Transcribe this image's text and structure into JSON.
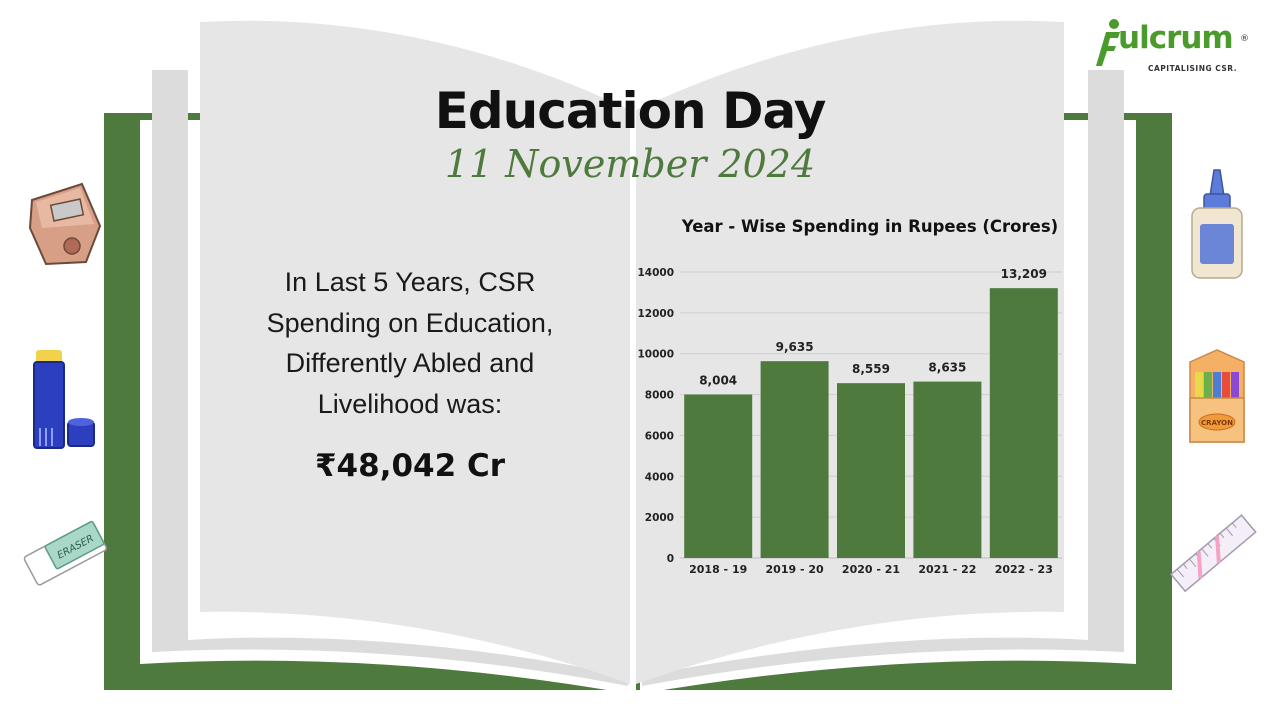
{
  "header": {
    "title": "Education Day",
    "date": "11 November 2024"
  },
  "statement": {
    "lines": [
      "In Last 5 Years, CSR",
      "Spending on Education,",
      "Differently Abled and",
      "Livelihood was:"
    ],
    "total": "₹48,042 Cr"
  },
  "logo": {
    "word": "ulcrum",
    "tagline": "CAPITALISING CSR.",
    "registered": "®"
  },
  "decorations": {
    "icons": [
      "pencil-sharpener-icon",
      "glue-stick-icon",
      "eraser-icon",
      "glue-bottle-icon",
      "crayon-box-icon",
      "ruler-icon"
    ],
    "eraser_label": "ERASER",
    "crayon_label": "CRAYON"
  },
  "colors": {
    "accent": "#4f7a3e",
    "bar": "#4f7a3e",
    "book_cover": "#4f7a3e",
    "page": "#e6e6e6",
    "logo_green": "#4a9a2c"
  },
  "chart_data": {
    "type": "bar",
    "title": "Year - Wise Spending  in  Rupees (Crores)",
    "categories": [
      "2018 - 19",
      "2019 - 20",
      "2020 - 21",
      "2021 - 22",
      "2022 - 23"
    ],
    "values": [
      8004,
      9635,
      8559,
      8635,
      13209
    ],
    "data_labels": [
      "8,004",
      "9,635",
      "8,559",
      "8,635",
      "13,209"
    ],
    "ylim": [
      0,
      14000
    ],
    "yticks": [
      0,
      2000,
      4000,
      6000,
      8000,
      10000,
      12000,
      14000
    ],
    "grid": true,
    "legend": "none"
  }
}
